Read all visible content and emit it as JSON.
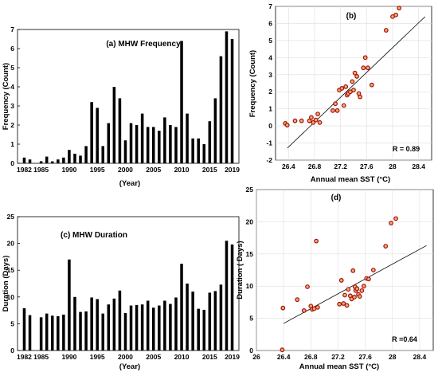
{
  "chart_data": [
    {
      "type": "bar",
      "title": "(a) MHW Frequency",
      "xlabel": "(Year)",
      "ylabel": "Frequency (Count)",
      "ylim": [
        0,
        7
      ],
      "yticks": [
        0,
        1,
        2,
        3,
        4,
        5,
        6,
        7
      ],
      "xticks": [
        1982,
        1985,
        1990,
        1995,
        2000,
        2005,
        2010,
        2015,
        2019
      ],
      "x": [
        1982,
        1983,
        1984,
        1985,
        1986,
        1987,
        1988,
        1989,
        1990,
        1991,
        1992,
        1993,
        1994,
        1995,
        1996,
        1997,
        1998,
        1999,
        2000,
        2001,
        2002,
        2003,
        2004,
        2005,
        2006,
        2007,
        2008,
        2009,
        2010,
        2011,
        2012,
        2013,
        2014,
        2015,
        2016,
        2017,
        2018,
        2019
      ],
      "values": [
        0.3,
        0.2,
        0.0,
        0.1,
        0.35,
        0.1,
        0.2,
        0.3,
        0.7,
        0.5,
        0.4,
        0.9,
        3.2,
        2.9,
        0.9,
        2.1,
        4.0,
        3.4,
        1.2,
        2.1,
        2.0,
        2.6,
        1.9,
        1.9,
        1.7,
        2.4,
        2.0,
        1.9,
        6.4,
        2.6,
        1.3,
        1.3,
        1.0,
        2.2,
        3.4,
        5.6,
        6.9,
        6.5
      ],
      "grid": false
    },
    {
      "type": "scatter",
      "label": "(b)",
      "xlabel": "Annual mean SST (°C)",
      "ylabel": "Frequency (Count)",
      "xlim": [
        26.2,
        28.6
      ],
      "ylim": [
        -2,
        7
      ],
      "xticks": [
        26.4,
        26.8,
        27.2,
        27.6,
        28,
        28.4
      ],
      "yticks": [
        -2,
        -1,
        0,
        1,
        2,
        3,
        4,
        5,
        6,
        7
      ],
      "points": [
        {
          "x": 26.35,
          "y": 0.15
        },
        {
          "x": 26.38,
          "y": 0.05
        },
        {
          "x": 26.5,
          "y": 0.3
        },
        {
          "x": 26.6,
          "y": 0.3
        },
        {
          "x": 26.72,
          "y": 0.3
        },
        {
          "x": 26.75,
          "y": 0.5
        },
        {
          "x": 26.78,
          "y": 0.2
        },
        {
          "x": 26.82,
          "y": 0.35
        },
        {
          "x": 26.85,
          "y": 0.7
        },
        {
          "x": 26.88,
          "y": 0.2
        },
        {
          "x": 27.08,
          "y": 0.9
        },
        {
          "x": 27.12,
          "y": 1.3
        },
        {
          "x": 27.15,
          "y": 0.9
        },
        {
          "x": 27.18,
          "y": 2.1
        },
        {
          "x": 27.22,
          "y": 2.2
        },
        {
          "x": 27.25,
          "y": 1.2
        },
        {
          "x": 27.28,
          "y": 2.3
        },
        {
          "x": 27.3,
          "y": 1.8
        },
        {
          "x": 27.32,
          "y": 1.9
        },
        {
          "x": 27.35,
          "y": 2.0
        },
        {
          "x": 27.38,
          "y": 2.6
        },
        {
          "x": 27.4,
          "y": 2.1
        },
        {
          "x": 27.42,
          "y": 3.1
        },
        {
          "x": 27.45,
          "y": 2.9
        },
        {
          "x": 27.48,
          "y": 1.9
        },
        {
          "x": 27.5,
          "y": 1.7
        },
        {
          "x": 27.55,
          "y": 3.4
        },
        {
          "x": 27.58,
          "y": 4.0
        },
        {
          "x": 27.62,
          "y": 3.4
        },
        {
          "x": 27.68,
          "y": 2.4
        },
        {
          "x": 27.9,
          "y": 5.6
        },
        {
          "x": 28.0,
          "y": 6.4
        },
        {
          "x": 28.05,
          "y": 6.5
        },
        {
          "x": 28.1,
          "y": 6.9
        }
      ],
      "fit": {
        "x0": 26.38,
        "y0": -1.3,
        "x1": 28.5,
        "y1": 6.4
      },
      "annotation": "R = 0.89",
      "grid": true
    },
    {
      "type": "bar",
      "title": "(c) MHW Duration",
      "xlabel": "(Year)",
      "ylabel": "Duration (Days)",
      "ylim": [
        0,
        25
      ],
      "yticks": [
        0,
        5,
        10,
        15,
        20,
        25
      ],
      "xticks": [
        1982,
        1985,
        1990,
        1995,
        2000,
        2005,
        2010,
        2015,
        2019
      ],
      "x": [
        1982,
        1983,
        1984,
        1985,
        1986,
        1987,
        1988,
        1989,
        1990,
        1991,
        1992,
        1993,
        1994,
        1995,
        1996,
        1997,
        1998,
        1999,
        2000,
        2001,
        2002,
        2003,
        2004,
        2005,
        2006,
        2007,
        2008,
        2009,
        2010,
        2011,
        2012,
        2013,
        2014,
        2015,
        2016,
        2017,
        2018,
        2019
      ],
      "values": [
        7.9,
        6.6,
        0,
        6.2,
        6.9,
        6.5,
        6.4,
        6.7,
        17.0,
        10.0,
        7.2,
        7.3,
        9.9,
        9.6,
        6.9,
        8.6,
        9.7,
        11.2,
        7.0,
        8.4,
        8.5,
        8.6,
        9.3,
        8.0,
        8.4,
        9.3,
        8.7,
        9.9,
        16.2,
        12.5,
        11.0,
        7.8,
        7.6,
        10.8,
        11.1,
        12.3,
        20.5,
        19.8
      ],
      "grid": false
    },
    {
      "type": "scatter",
      "label": "(d)",
      "xlabel": "Annual mean SST (°C)",
      "ylabel": "Duration ( Days)",
      "xlim": [
        26,
        28.6
      ],
      "ylim": [
        0,
        25
      ],
      "xticks": [
        26,
        26.4,
        26.8,
        27.2,
        27.6,
        28,
        28.4
      ],
      "yticks": [
        0,
        5,
        10,
        15,
        20,
        25
      ],
      "points": [
        {
          "x": 26.38,
          "y": 0.1
        },
        {
          "x": 26.39,
          "y": 6.6
        },
        {
          "x": 26.6,
          "y": 7.9
        },
        {
          "x": 26.7,
          "y": 6.2
        },
        {
          "x": 26.75,
          "y": 9.9
        },
        {
          "x": 26.8,
          "y": 6.9
        },
        {
          "x": 26.82,
          "y": 6.4
        },
        {
          "x": 26.85,
          "y": 6.5
        },
        {
          "x": 26.88,
          "y": 17.0
        },
        {
          "x": 26.9,
          "y": 6.7
        },
        {
          "x": 27.22,
          "y": 7.2
        },
        {
          "x": 27.25,
          "y": 10.9
        },
        {
          "x": 27.28,
          "y": 7.3
        },
        {
          "x": 27.3,
          "y": 8.6
        },
        {
          "x": 27.33,
          "y": 7.0
        },
        {
          "x": 27.35,
          "y": 9.5
        },
        {
          "x": 27.38,
          "y": 8.5
        },
        {
          "x": 27.4,
          "y": 8.0
        },
        {
          "x": 27.42,
          "y": 12.4
        },
        {
          "x": 27.44,
          "y": 8.3
        },
        {
          "x": 27.45,
          "y": 9.9
        },
        {
          "x": 27.46,
          "y": 9.3
        },
        {
          "x": 27.48,
          "y": 9.6
        },
        {
          "x": 27.5,
          "y": 8.7
        },
        {
          "x": 27.52,
          "y": 8.4
        },
        {
          "x": 27.55,
          "y": 9.3
        },
        {
          "x": 27.58,
          "y": 10.0
        },
        {
          "x": 27.62,
          "y": 11.2
        },
        {
          "x": 27.65,
          "y": 11.1
        },
        {
          "x": 27.72,
          "y": 12.5
        },
        {
          "x": 27.9,
          "y": 16.2
        },
        {
          "x": 27.98,
          "y": 19.8
        },
        {
          "x": 28.05,
          "y": 20.5
        }
      ],
      "fit": {
        "x0": 26.4,
        "y0": 4.2,
        "x1": 28.5,
        "y1": 16.3
      },
      "annotation": "R =0.64",
      "grid": true
    }
  ]
}
